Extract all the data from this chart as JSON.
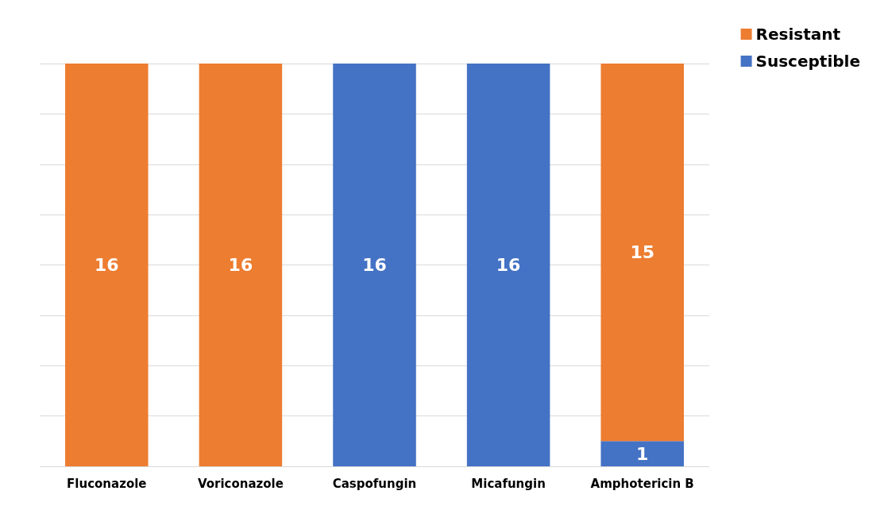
{
  "chart_data": {
    "type": "bar",
    "stacked": true,
    "categories": [
      "Fluconazole",
      "Voriconazole",
      "Caspofungin",
      "Micafungin",
      "Amphotericin B"
    ],
    "series": [
      {
        "name": "Susceptible",
        "color": "#4472c4",
        "values": [
          null,
          null,
          16,
          16,
          1
        ]
      },
      {
        "name": "Resistant",
        "color": "#ed7d31",
        "values": [
          16,
          16,
          null,
          null,
          15
        ]
      }
    ],
    "data_labels": true,
    "grid": "y",
    "legend": "top right",
    "tick_labels": "x"
  }
}
